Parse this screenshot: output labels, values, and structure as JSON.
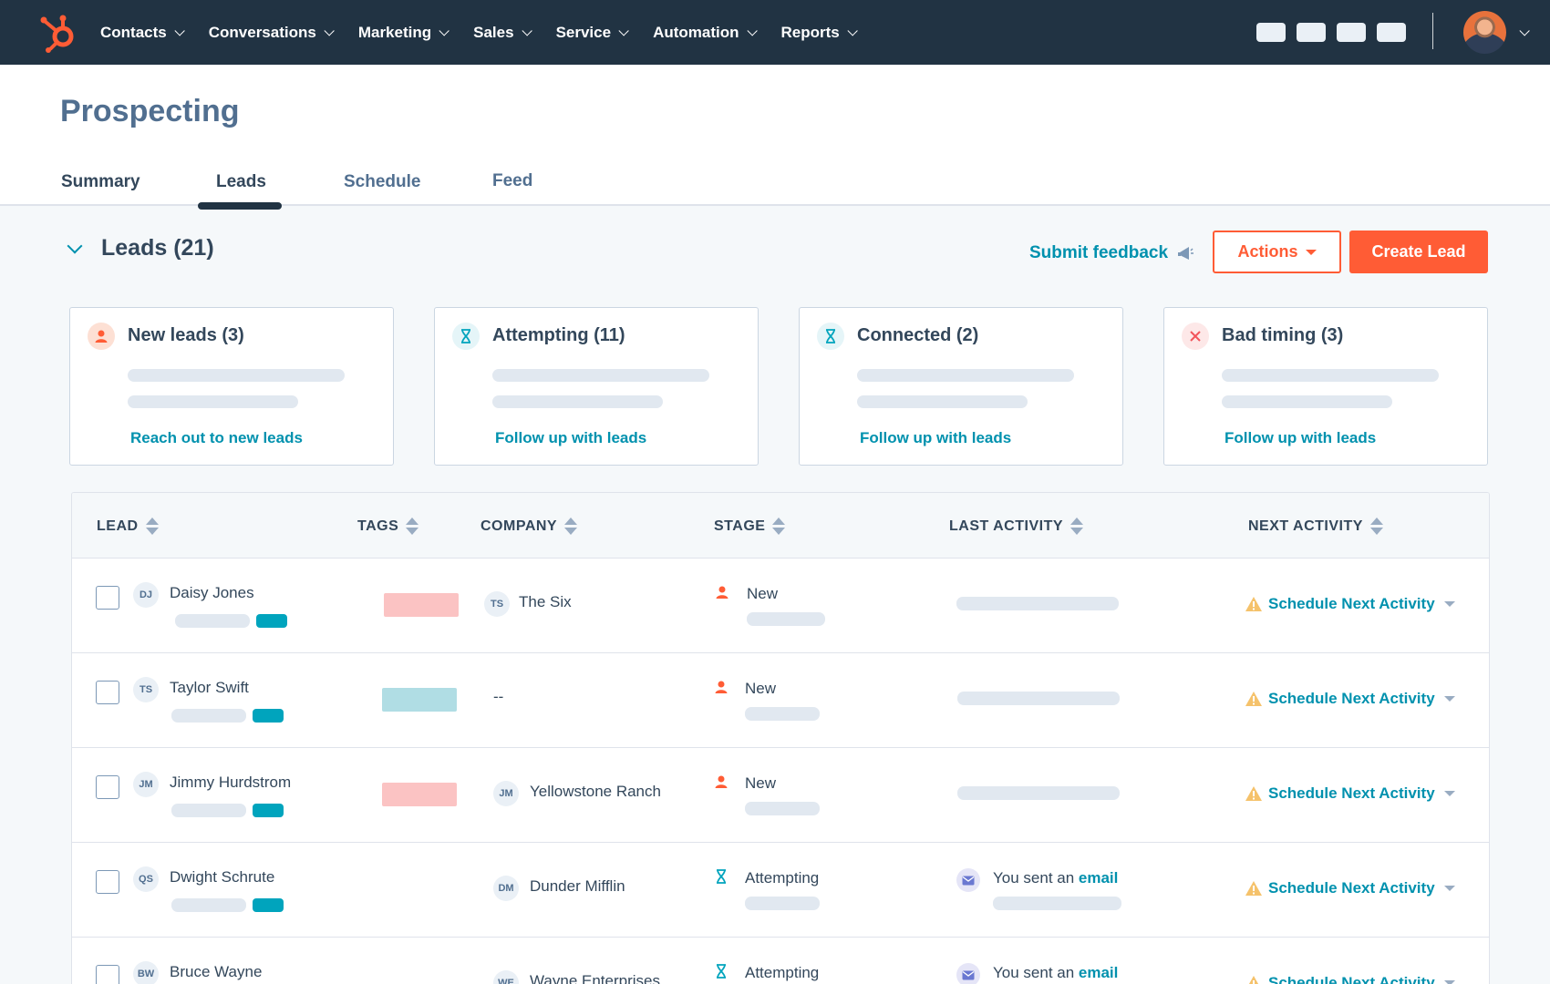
{
  "nav": {
    "items": [
      {
        "label": "Contacts"
      },
      {
        "label": "Conversations"
      },
      {
        "label": "Marketing"
      },
      {
        "label": "Sales"
      },
      {
        "label": "Service"
      },
      {
        "label": "Automation"
      },
      {
        "label": "Reports"
      }
    ],
    "logo_icon": "hubspot-sprocket-icon",
    "brand_color": "#ff5c35",
    "nav_bg": "#213343"
  },
  "page": {
    "title": "Prospecting",
    "tabs": [
      {
        "label": "Summary",
        "active": false
      },
      {
        "label": "Leads",
        "active": true
      },
      {
        "label": "Schedule",
        "active": false
      },
      {
        "label": "Feed",
        "active": false
      }
    ]
  },
  "section": {
    "title": "Leads (21)",
    "feedback_label": "Submit feedback",
    "actions_label": "Actions",
    "create_label": "Create Lead"
  },
  "cards": [
    {
      "title": "New leads (3)",
      "link": "Reach out to new leads",
      "icon": "person-icon"
    },
    {
      "title": "Attempting (11)",
      "link": "Follow up with leads",
      "icon": "hourglass-icon"
    },
    {
      "title": "Connected (2)",
      "link": "Follow up with leads",
      "icon": "hourglass-icon"
    },
    {
      "title": "Bad timing (3)",
      "link": "Follow up with leads",
      "icon": "x-icon"
    }
  ],
  "table": {
    "columns": [
      "LEAD",
      "TAGS",
      "COMPANY",
      "STAGE",
      "LAST ACTIVITY",
      "NEXT ACTIVITY"
    ],
    "rows": [
      {
        "initials": "DJ",
        "name": "Daisy Jones",
        "tag_color": "#fbc3c3",
        "company_initials": "TS",
        "company": "The Six",
        "stage": "New",
        "stage_icon": "person-icon",
        "last_activity_prefix": "",
        "last_activity_link": "",
        "next": "Schedule Next Activity"
      },
      {
        "initials": "TS",
        "name": "Taylor Swift",
        "tag_color": "#b0dde4",
        "company_initials": "",
        "company": "--",
        "stage": "New",
        "stage_icon": "person-icon",
        "last_activity_prefix": "",
        "last_activity_link": "",
        "next": "Schedule Next Activity"
      },
      {
        "initials": "JM",
        "name": "Jimmy Hurdstrom",
        "tag_color": "#fbc3c3",
        "company_initials": "JM",
        "company": "Yellowstone Ranch",
        "stage": "New",
        "stage_icon": "person-icon",
        "last_activity_prefix": "",
        "last_activity_link": "",
        "next": "Schedule Next Activity"
      },
      {
        "initials": "QS",
        "name": "Dwight Schrute",
        "tag_color": "",
        "company_initials": "DM",
        "company": "Dunder Mifflin",
        "stage": "Attempting",
        "stage_icon": "hourglass-icon",
        "last_activity_prefix": "You sent an ",
        "last_activity_link": "email",
        "next": "Schedule Next Activity"
      },
      {
        "initials": "BW",
        "name": "Bruce Wayne",
        "tag_color": "",
        "company_initials": "WE",
        "company": "Wayne Enterprises",
        "stage": "Attempting",
        "stage_icon": "hourglass-icon",
        "last_activity_prefix": "You sent an ",
        "last_activity_link": "email",
        "next": "Schedule Next Activity"
      }
    ]
  },
  "colors": {
    "accent": "#0091ae",
    "orange": "#ff5c35",
    "warning": "#f5c26b",
    "tag_pink": "#fbc3c3",
    "tag_teal": "#b0dde4",
    "chip_teal": "#00a4bd"
  }
}
